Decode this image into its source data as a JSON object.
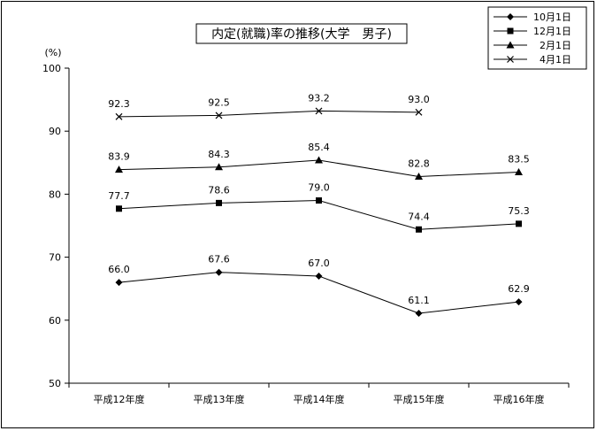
{
  "chart_data": {
    "type": "line",
    "title": "内定(就職)率の推移(大学　男子)",
    "ylabel": "(%)",
    "xlabel": "",
    "ylim": [
      50,
      100
    ],
    "yticks": [
      50,
      60,
      70,
      80,
      90,
      100
    ],
    "categories": [
      "平成12年度",
      "平成13年度",
      "平成14年度",
      "平成15年度",
      "平成16年度"
    ],
    "grid": false,
    "legend_position": "top-right",
    "series": [
      {
        "name": "10月1日",
        "marker": "diamond",
        "values": [
          66.0,
          67.6,
          67.0,
          61.1,
          62.9
        ],
        "labels": [
          "66.0",
          "67.6",
          "67.0",
          "61.1",
          "62.9"
        ]
      },
      {
        "name": "12月1日",
        "marker": "square",
        "values": [
          77.7,
          78.6,
          79.0,
          74.4,
          75.3
        ],
        "labels": [
          "77.7",
          "78.6",
          "79.0",
          "74.4",
          "75.3"
        ]
      },
      {
        "name": "2月1日",
        "marker": "triangle",
        "values": [
          83.9,
          84.3,
          85.4,
          82.8,
          83.5
        ],
        "labels": [
          "83.9",
          "84.3",
          "85.4",
          "82.8",
          "83.5"
        ]
      },
      {
        "name": "4月1日",
        "marker": "x",
        "values": [
          92.3,
          92.5,
          93.2,
          93.0,
          null
        ],
        "labels": [
          "92.3",
          "92.5",
          "93.2",
          "93.0",
          null
        ]
      }
    ]
  }
}
